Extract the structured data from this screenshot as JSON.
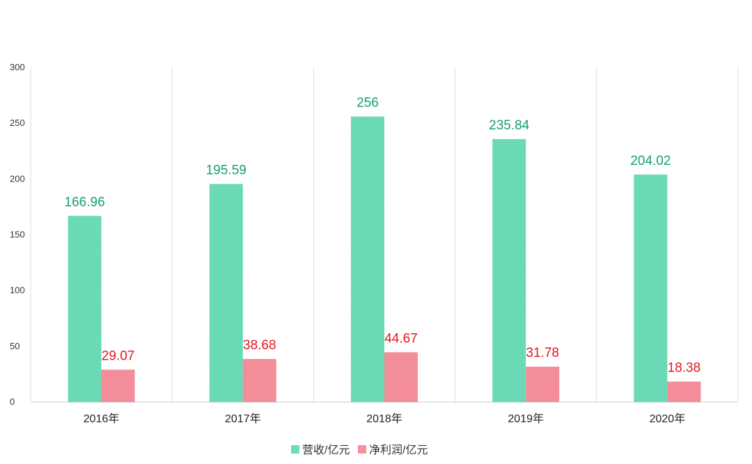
{
  "chart_data": {
    "type": "bar",
    "categories": [
      "2016年",
      "2017年",
      "2018年",
      "2019年",
      "2020年"
    ],
    "series": [
      {
        "name": "营收/亿元",
        "values": [
          166.96,
          195.59,
          256,
          235.84,
          204.02
        ],
        "labels": [
          "166.96",
          "195.59",
          "256",
          "235.84",
          "204.02"
        ],
        "color": "#6fdcb9",
        "label_color": "#12a070"
      },
      {
        "name": "净利润/亿元",
        "values": [
          29.07,
          38.68,
          44.67,
          31.78,
          18.38
        ],
        "labels": [
          "29.07",
          "38.68",
          "44.67",
          "31.78",
          "18.38"
        ],
        "color": "#f4919d",
        "label_color": "#e5161e"
      }
    ],
    "ylim": [
      0,
      300
    ],
    "yticks": [
      "0",
      "50",
      "100",
      "150",
      "200",
      "250",
      "300"
    ],
    "xlabel": "",
    "ylabel": "",
    "grid": "vertical separators between categories",
    "legend": "bottom-center"
  }
}
